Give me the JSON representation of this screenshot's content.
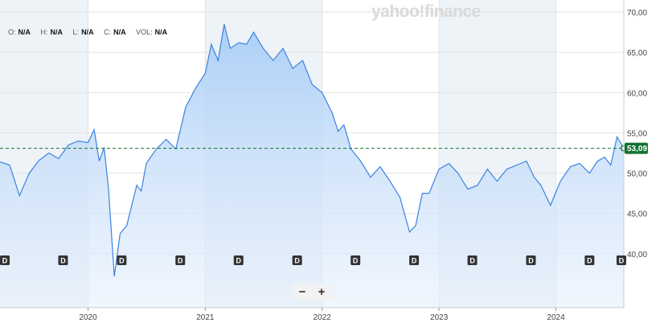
{
  "ohlc": {
    "open_label": "O:",
    "open_value": "N/A",
    "high_label": "H:",
    "high_value": "N/A",
    "low_label": "L:",
    "low_value": "N/A",
    "close_label": "C:",
    "close_value": "N/A",
    "vol_label": "VOL:",
    "vol_value": "N/A"
  },
  "watermark": "yahoo!finance",
  "zoom": {
    "minus": "−",
    "plus": "+"
  },
  "colors": {
    "line": "#3b82e0",
    "fill_top": "#a9cdf7",
    "fill_bottom": "#e6f0fc",
    "band": "#eef3f8",
    "grid": "#e3e3e3",
    "last_badge": "#137333",
    "marker": "#333333"
  },
  "chart_data": {
    "type": "area",
    "ylim": [
      33.3,
      71.5
    ],
    "xlim": [
      "2019-04-01",
      "2024-07-31"
    ],
    "y_ticks": [
      40,
      45,
      50,
      55,
      60,
      65,
      70
    ],
    "y_tick_labels": [
      "40,00",
      "45,00",
      "50,00",
      "55,00",
      "60,00",
      "65,00",
      "70,00"
    ],
    "x_ticks": [
      "2020-01-01",
      "2021-01-01",
      "2022-01-01",
      "2023-01-01",
      "2024-01-01"
    ],
    "x_tick_labels": [
      "2020",
      "2021",
      "2022",
      "2023",
      "2024"
    ],
    "last_value": 53.09,
    "last_value_label": "53,09",
    "dividend_marker_label": "D",
    "dividend_dates": [
      "2019-04-15",
      "2019-10-15",
      "2020-04-15",
      "2020-10-15",
      "2021-04-15",
      "2021-10-15",
      "2022-04-15",
      "2022-10-15",
      "2023-04-15",
      "2023-10-15",
      "2024-04-15",
      "2024-07-25"
    ],
    "x": [
      "2019-04-01",
      "2019-05-01",
      "2019-06-01",
      "2019-07-01",
      "2019-08-01",
      "2019-09-01",
      "2019-10-01",
      "2019-11-01",
      "2019-12-01",
      "2020-01-01",
      "2020-01-20",
      "2020-02-05",
      "2020-02-20",
      "2020-03-05",
      "2020-03-23",
      "2020-04-10",
      "2020-05-01",
      "2020-06-01",
      "2020-06-15",
      "2020-07-01",
      "2020-08-01",
      "2020-09-01",
      "2020-10-01",
      "2020-11-01",
      "2020-12-01",
      "2021-01-01",
      "2021-01-20",
      "2021-02-10",
      "2021-03-01",
      "2021-03-20",
      "2021-04-15",
      "2021-05-10",
      "2021-06-01",
      "2021-07-01",
      "2021-08-01",
      "2021-09-01",
      "2021-10-01",
      "2021-11-01",
      "2021-12-01",
      "2022-01-01",
      "2022-02-01",
      "2022-02-20",
      "2022-03-10",
      "2022-04-01",
      "2022-05-01",
      "2022-06-01",
      "2022-07-01",
      "2022-08-01",
      "2022-09-01",
      "2022-10-01",
      "2022-10-20",
      "2022-11-10",
      "2022-12-01",
      "2023-01-01",
      "2023-02-01",
      "2023-03-01",
      "2023-04-01",
      "2023-05-01",
      "2023-06-01",
      "2023-07-01",
      "2023-08-01",
      "2023-09-01",
      "2023-10-01",
      "2023-10-25",
      "2023-11-15",
      "2023-12-15",
      "2024-01-15",
      "2024-02-15",
      "2024-03-15",
      "2024-04-15",
      "2024-05-10",
      "2024-06-01",
      "2024-06-20",
      "2024-07-10",
      "2024-07-31"
    ],
    "series": [
      {
        "values": [
          51.4,
          51.0,
          47.2,
          50.0,
          51.6,
          52.5,
          51.8,
          53.5,
          54.0,
          53.8,
          55.4,
          51.5,
          53.2,
          48.0,
          37.2,
          42.5,
          43.5,
          48.5,
          47.8,
          51.2,
          53.0,
          54.2,
          53.0,
          58.2,
          60.5,
          62.4,
          66.0,
          64.0,
          68.5,
          65.5,
          66.2,
          66.0,
          67.5,
          65.5,
          64.0,
          65.5,
          63.0,
          64.0,
          61.0,
          60.0,
          57.5,
          55.2,
          56.0,
          53.0,
          51.5,
          49.5,
          50.8,
          49.0,
          47.0,
          42.7,
          43.5,
          47.5,
          47.5,
          50.5,
          51.2,
          50.0,
          48.0,
          48.5,
          50.5,
          49.0,
          50.5,
          51.0,
          51.5,
          49.5,
          48.5,
          46.0,
          49.0,
          50.8,
          51.2,
          50.0,
          51.5,
          52.0,
          51.0,
          54.5,
          53.09
        ]
      }
    ]
  }
}
